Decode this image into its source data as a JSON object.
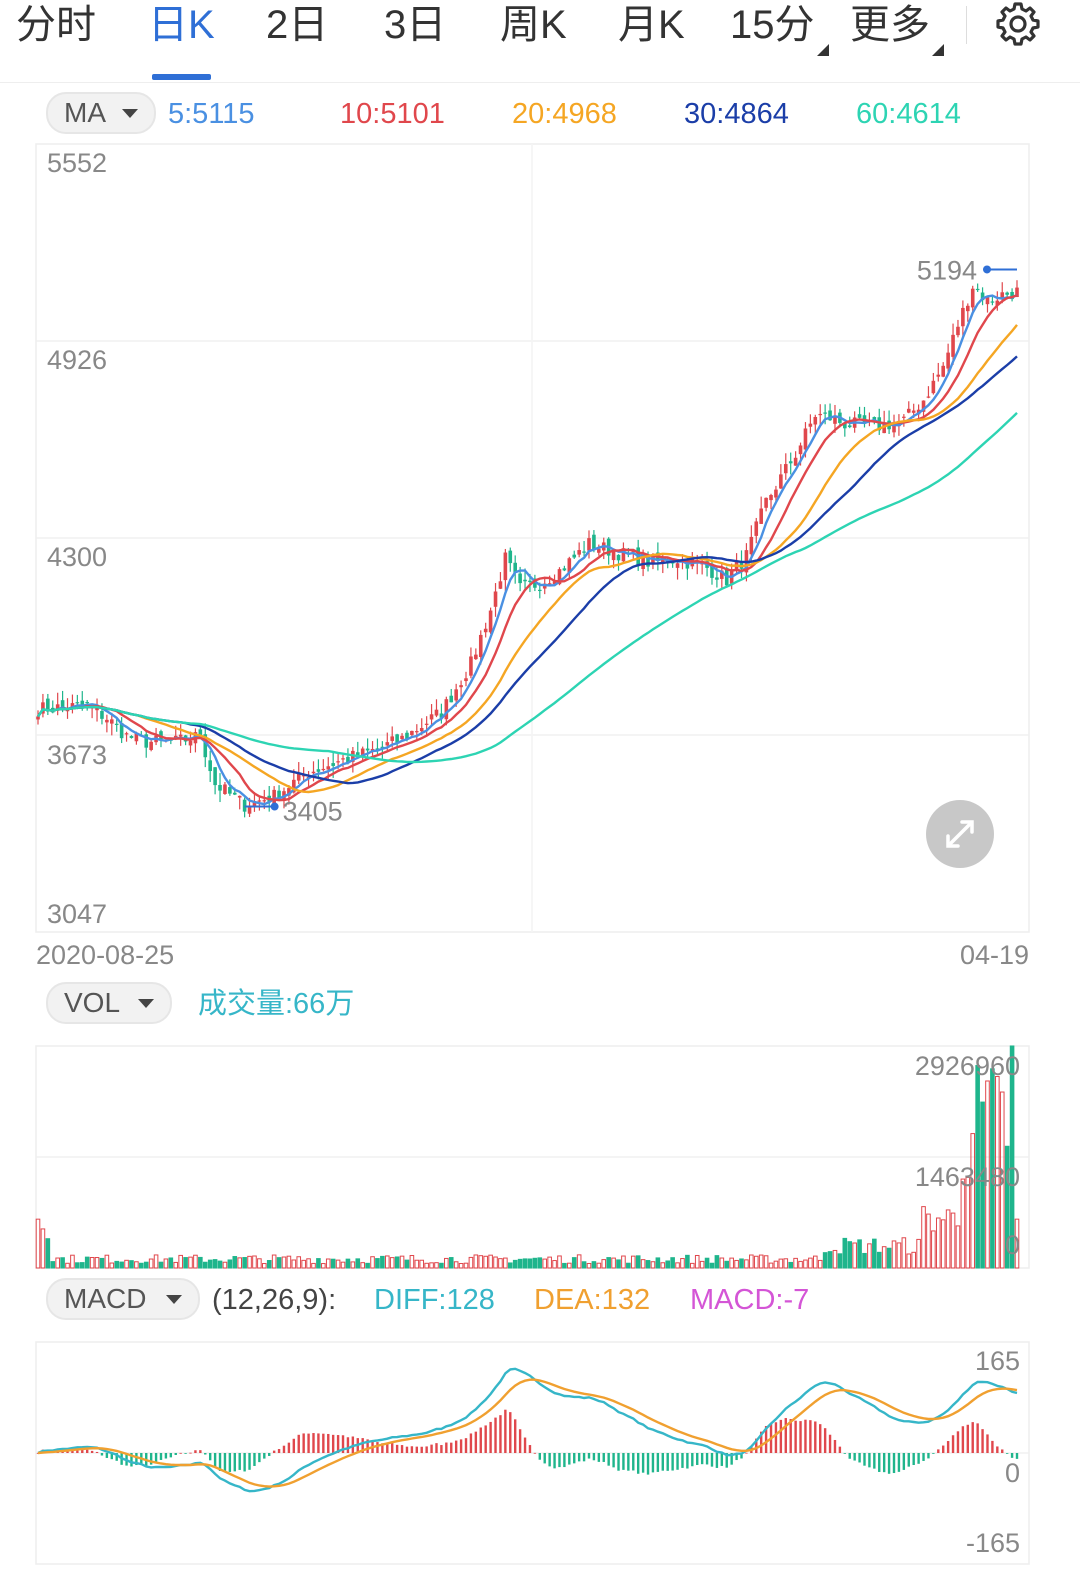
{
  "tabs": [
    {
      "label": "分时",
      "active": false
    },
    {
      "label": "日K",
      "active": true
    },
    {
      "label": "2日",
      "active": false
    },
    {
      "label": "3日",
      "active": false
    },
    {
      "label": "周K",
      "active": false
    },
    {
      "label": "月K",
      "active": false
    },
    {
      "label": "15分",
      "active": false,
      "has_dropdown": true
    },
    {
      "label": "更多",
      "active": false,
      "has_dropdown": true
    }
  ],
  "icons": {
    "settings": "gear-icon",
    "expand": "expand-arrows-icon",
    "dropdown": "caret-down-icon"
  },
  "colors": {
    "up": "#e0474c",
    "down": "#1fb58c",
    "accent": "#2f6fd6",
    "ma5": "#4a90e2",
    "ma10": "#e0474c",
    "ma20": "#f5a623",
    "ma30": "#1b3ea8",
    "ma60": "#2dd4b3",
    "diff": "#36b6c8",
    "dea": "#f0a030",
    "macd": "#d455d6"
  },
  "ma_panel": {
    "selector": "MA",
    "values": [
      {
        "label": "5:5115",
        "color": "#4a90e2"
      },
      {
        "label": "10:5101",
        "color": "#e0474c"
      },
      {
        "label": "20:4968",
        "color": "#f5a623"
      },
      {
        "label": "30:4864",
        "color": "#1b3ea8"
      },
      {
        "label": "60:4614",
        "color": "#2dd4b3"
      }
    ]
  },
  "vol_panel": {
    "selector": "VOL",
    "label": "成交量:66万"
  },
  "macd_panel": {
    "selector": "MACD",
    "params": "(12,26,9):",
    "diff": "DIFF:128",
    "dea": "DEA:132",
    "macd": "MACD:-7"
  },
  "chart_data": [
    {
      "type": "candlestick",
      "title": "",
      "y_ticks": [
        "5552",
        "4926",
        "4300",
        "3673",
        "3047"
      ],
      "ylim": [
        3047,
        5552
      ],
      "x_start_label": "2020-08-25",
      "x_end_label": "04-19",
      "annotations": {
        "high": "5194",
        "low": "3405"
      },
      "ma_levels": {
        "MA5": 5115,
        "MA10": 5101,
        "MA20": 4968,
        "MA30": 4864,
        "MA60": 4614
      },
      "close_keypoints": [
        [
          0,
          3730
        ],
        [
          10,
          3740
        ],
        [
          14,
          3700
        ],
        [
          18,
          3640
        ],
        [
          22,
          3620
        ],
        [
          28,
          3620
        ],
        [
          33,
          3640
        ],
        [
          36,
          3480
        ],
        [
          42,
          3410
        ],
        [
          48,
          3440
        ],
        [
          55,
          3520
        ],
        [
          62,
          3560
        ],
        [
          68,
          3590
        ],
        [
          74,
          3630
        ],
        [
          82,
          3720
        ],
        [
          88,
          3880
        ],
        [
          92,
          4060
        ],
        [
          95,
          4230
        ],
        [
          98,
          4130
        ],
        [
          102,
          4150
        ],
        [
          106,
          4190
        ],
        [
          112,
          4280
        ],
        [
          118,
          4250
        ],
        [
          124,
          4220
        ],
        [
          130,
          4230
        ],
        [
          136,
          4200
        ],
        [
          140,
          4160
        ],
        [
          144,
          4240
        ],
        [
          148,
          4420
        ],
        [
          154,
          4580
        ],
        [
          158,
          4710
        ],
        [
          161,
          4700
        ],
        [
          164,
          4680
        ],
        [
          170,
          4670
        ],
        [
          176,
          4690
        ],
        [
          180,
          4760
        ],
        [
          184,
          4870
        ],
        [
          187,
          5010
        ],
        [
          190,
          5140
        ],
        [
          193,
          5090
        ],
        [
          196,
          5110
        ],
        [
          199,
          5120
        ]
      ]
    },
    {
      "type": "bar",
      "title": "",
      "y_ticks": [
        "2926960",
        "1463480",
        "0"
      ],
      "ylim": [
        0,
        2926960
      ]
    },
    {
      "type": "line",
      "title": "",
      "y_ticks": [
        "165",
        "0",
        "-165"
      ],
      "ylim": [
        -165,
        165
      ]
    }
  ]
}
